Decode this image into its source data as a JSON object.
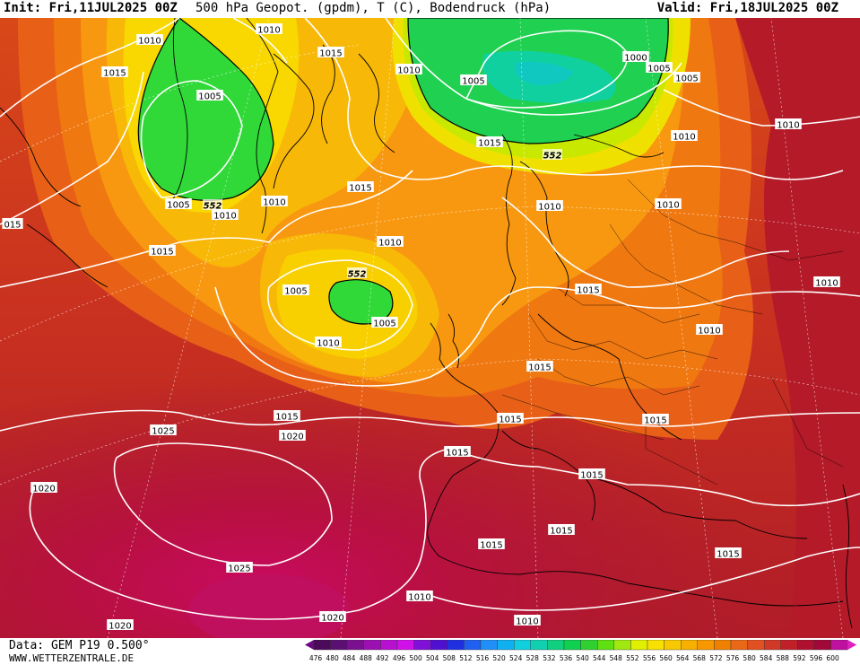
{
  "header": {
    "init": "Init: Fri,11JUL2025 00Z",
    "title": "500 hPa Geopot. (gpdm), T (C), Bodendruck (hPa)",
    "valid": "Valid: Fri,18JUL2025 00Z"
  },
  "footer": {
    "data_source": "Data: GEM P19 0.500°",
    "website": "WWW.WETTERZENTRALE.DE"
  },
  "legend": {
    "values": [
      "476",
      "480",
      "484",
      "488",
      "492",
      "496",
      "500",
      "504",
      "508",
      "512",
      "516",
      "520",
      "524",
      "528",
      "532",
      "536",
      "540",
      "544",
      "548",
      "552",
      "556",
      "560",
      "564",
      "568",
      "572",
      "576",
      "580",
      "584",
      "588",
      "592",
      "596",
      "600"
    ],
    "colors": [
      "#4b0a5a",
      "#5c0f72",
      "#7a1090",
      "#9a10b0",
      "#b810d0",
      "#d010e8",
      "#8010d8",
      "#5010d0",
      "#2030e0",
      "#2060f0",
      "#2090f8",
      "#10b0f0",
      "#10d0e0",
      "#10d0b0",
      "#10d080",
      "#10d050",
      "#30d030",
      "#60e010",
      "#a0e810",
      "#e0f000",
      "#f8e000",
      "#f8c800",
      "#f8b000",
      "#f89800",
      "#f08000",
      "#e86818",
      "#e05020",
      "#d03828",
      "#c02028",
      "#b01030",
      "#a00838",
      "#c010a0"
    ],
    "arrow_left_color": "#6a0a80",
    "arrow_right_color": "#e020c0"
  },
  "map": {
    "isobar_labels": [
      {
        "id": "1010-nw",
        "text": "1010"
      },
      {
        "id": "1015-w",
        "text": "1015"
      },
      {
        "id": "1005-gr",
        "text": "1005"
      },
      {
        "id": "1010-gr-n",
        "text": "1010"
      },
      {
        "id": "1015-gr-n",
        "text": "1015"
      },
      {
        "id": "1010-ice",
        "text": "1010"
      },
      {
        "id": "1005-sc",
        "text": "1005"
      },
      {
        "id": "1000-sc",
        "text": "1000"
      },
      {
        "id": "1005-sc-e",
        "text": "1005"
      },
      {
        "id": "1005-ru",
        "text": "1005"
      },
      {
        "id": "1010-ne",
        "text": "1010"
      },
      {
        "id": "1010-ru",
        "text": "1010"
      },
      {
        "id": "1015-no",
        "text": "1015"
      },
      {
        "id": "1010-fi",
        "text": "1010"
      },
      {
        "id": "1010-ru-w",
        "text": "1010"
      },
      {
        "id": "1005-gr-s",
        "text": "1005"
      },
      {
        "id": "1010-gr-s",
        "text": "1010"
      },
      {
        "id": "1010-ice-s",
        "text": "1010"
      },
      {
        "id": "1015-ocean",
        "text": "1015"
      },
      {
        "id": "1015-left",
        "text": "015"
      },
      {
        "id": "1015-lab",
        "text": "1015"
      },
      {
        "id": "1010-low",
        "text": "1010"
      },
      {
        "id": "1005-low-w",
        "text": "1005"
      },
      {
        "id": "1005-low-s",
        "text": "1005"
      },
      {
        "id": "1015-poland",
        "text": "1015"
      },
      {
        "id": "1010-east",
        "text": "1010"
      },
      {
        "id": "1010-fr",
        "text": "1010"
      },
      {
        "id": "1015-de",
        "text": "1015"
      },
      {
        "id": "1010-atl",
        "text": "1010"
      },
      {
        "id": "1015-atl",
        "text": "1015"
      },
      {
        "id": "1020-atl",
        "text": "1020"
      },
      {
        "id": "1025-azor",
        "text": "1025"
      },
      {
        "id": "1015-ib",
        "text": "1015"
      },
      {
        "id": "1015-it",
        "text": "1015"
      },
      {
        "id": "1015-balk",
        "text": "1015"
      },
      {
        "id": "1020-sw",
        "text": "1020"
      },
      {
        "id": "1025-s",
        "text": "1025"
      },
      {
        "id": "1015-med",
        "text": "1015"
      },
      {
        "id": "1015-mede",
        "text": "1015"
      },
      {
        "id": "1015-af",
        "text": "1015"
      },
      {
        "id": "1015-af2",
        "text": "1015"
      },
      {
        "id": "1010-af",
        "text": "1010"
      },
      {
        "id": "1020-bot",
        "text": "1020"
      },
      {
        "id": "1020-bot2",
        "text": "1020"
      },
      {
        "id": "1010-e2",
        "text": "1010"
      }
    ],
    "geopot_labels": [
      {
        "id": "552-gr",
        "text": "552"
      },
      {
        "id": "552-sc",
        "text": "552"
      },
      {
        "id": "552-low",
        "text": "552"
      }
    ]
  }
}
